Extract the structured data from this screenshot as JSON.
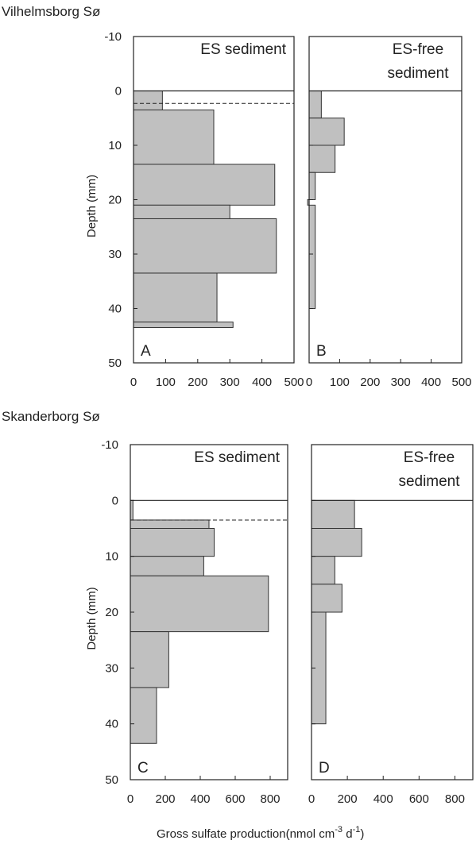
{
  "figure": {
    "title_top": "Vilhelmsborg Sø",
    "title_bottom": "Skanderborg Sø",
    "x_axis_label": "Gross sulfate production(nmol cm",
    "x_axis_label_exp1": "-3",
    "x_axis_label_mid": " d",
    "x_axis_label_exp2": "-1",
    "x_axis_label_end": ")"
  },
  "chart_data": [
    {
      "type": "bar",
      "panel": "A",
      "title_lines": [
        "ES sediment"
      ],
      "ylabel": "Depth (mm)",
      "xlim": [
        0,
        500
      ],
      "ylim": [
        -10,
        50
      ],
      "y_inverted": true,
      "xticks": [
        0,
        100,
        200,
        300,
        400,
        500
      ],
      "yticks": [
        -10,
        0,
        10,
        20,
        30,
        40,
        50
      ],
      "dashed_line_depth": 2.3,
      "depth_bins": [
        [
          0,
          3.5
        ],
        [
          3.5,
          13.5
        ],
        [
          13.5,
          21
        ],
        [
          21,
          23.5
        ],
        [
          23.5,
          33.5
        ],
        [
          33.5,
          42.5
        ],
        [
          42.5,
          43.5
        ]
      ],
      "values": [
        90,
        250,
        440,
        300,
        445,
        260,
        310
      ]
    },
    {
      "type": "bar",
      "panel": "B",
      "title_lines": [
        "ES-free",
        "sediment"
      ],
      "ylabel": "",
      "xlim": [
        0,
        500
      ],
      "ylim": [
        -10,
        50
      ],
      "y_inverted": true,
      "xticks": [
        0,
        100,
        200,
        300,
        400,
        500
      ],
      "yticks": [
        -10,
        0,
        10,
        20,
        30,
        40,
        50
      ],
      "depth_bins": [
        [
          0,
          5
        ],
        [
          5,
          10
        ],
        [
          10,
          15
        ],
        [
          15,
          20
        ],
        [
          20,
          21
        ],
        [
          21,
          40
        ]
      ],
      "values": [
        40,
        115,
        85,
        20,
        -5,
        20
      ]
    },
    {
      "type": "bar",
      "panel": "C",
      "title_lines": [
        "ES sediment"
      ],
      "ylabel": "Depth (mm)",
      "xlim": [
        0,
        900
      ],
      "ylim": [
        -10,
        50
      ],
      "y_inverted": true,
      "xticks": [
        0,
        200,
        400,
        600,
        800
      ],
      "yticks": [
        -10,
        0,
        10,
        20,
        30,
        40,
        50
      ],
      "dashed_line_depth": 3.5,
      "depth_bins": [
        [
          0,
          3.5
        ],
        [
          3.5,
          5
        ],
        [
          5,
          10
        ],
        [
          10,
          13.5
        ],
        [
          13.5,
          23.5
        ],
        [
          23.5,
          33.5
        ],
        [
          33.5,
          43.5
        ]
      ],
      "values": [
        15,
        450,
        480,
        420,
        790,
        220,
        150
      ]
    },
    {
      "type": "bar",
      "panel": "D",
      "title_lines": [
        "ES-free",
        "sediment"
      ],
      "ylabel": "",
      "xlim": [
        0,
        900
      ],
      "ylim": [
        -10,
        50
      ],
      "y_inverted": true,
      "xticks": [
        0,
        200,
        400,
        600,
        800
      ],
      "yticks": [
        -10,
        0,
        10,
        20,
        30,
        40,
        50
      ],
      "depth_bins": [
        [
          0,
          5
        ],
        [
          5,
          10
        ],
        [
          10,
          15
        ],
        [
          15,
          20
        ],
        [
          20,
          40
        ]
      ],
      "values": [
        240,
        280,
        130,
        170,
        80
      ]
    }
  ]
}
